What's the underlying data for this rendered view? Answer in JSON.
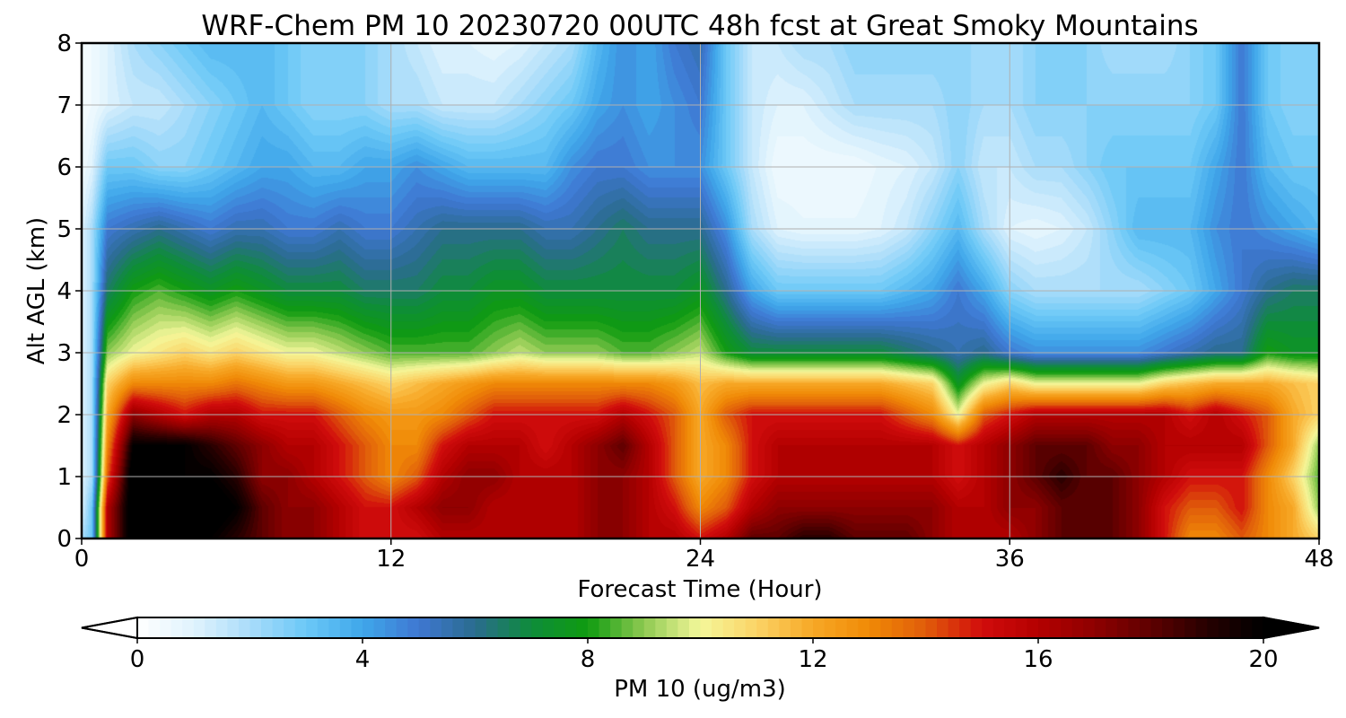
{
  "chart_data": {
    "type": "heatmap",
    "title": "WRF-Chem PM 10  20230720 00UTC 48h fcst at Great Smoky Mountains",
    "xlabel": "Forecast Time (Hour)",
    "ylabel": "Alt AGL (km)",
    "xlim": [
      0,
      48
    ],
    "ylim": [
      0,
      8
    ],
    "x_ticks": [
      "0",
      "12",
      "24",
      "36",
      "48"
    ],
    "y_ticks": [
      "0",
      "1",
      "2",
      "3",
      "4",
      "5",
      "6",
      "7",
      "8"
    ],
    "grid": true,
    "colorbar": {
      "label": "PM 10  (ug/m3)",
      "range": [
        0,
        20
      ],
      "ticks": [
        "0",
        "4",
        "8",
        "12",
        "16",
        "20"
      ],
      "extend": "both",
      "orientation": "horizontal"
    },
    "x_hours": [
      0,
      0.4,
      1,
      2,
      3,
      4,
      5,
      6,
      7,
      8,
      9,
      10,
      11,
      12,
      13,
      14,
      15,
      16,
      17,
      18,
      19,
      20,
      21,
      22,
      23,
      24,
      25,
      26,
      27,
      28,
      29,
      30,
      31,
      32,
      33,
      34,
      35,
      36,
      37,
      38,
      39,
      40,
      41,
      42,
      43,
      44,
      45,
      46,
      47,
      48
    ],
    "layers": {
      "altitude_km": [
        0,
        0.5,
        1,
        1.5,
        2,
        2.5,
        3,
        4,
        5,
        6,
        7,
        8
      ],
      "pm10": [
        [
          2,
          3,
          16,
          21,
          21,
          21,
          20,
          19,
          18,
          17,
          17,
          16,
          15,
          15,
          15,
          16,
          16,
          16,
          16,
          16,
          16,
          17,
          17,
          16,
          16,
          15,
          16,
          18,
          18,
          19,
          19,
          18,
          18,
          18,
          17,
          16,
          16,
          16,
          17,
          18,
          18,
          18,
          17,
          15,
          13,
          13,
          14,
          13,
          12,
          11
        ],
        [
          1,
          3,
          16,
          21,
          21,
          21,
          21,
          20,
          18,
          17,
          17,
          16,
          15,
          15,
          16,
          17,
          17,
          16,
          16,
          16,
          16,
          17,
          17,
          16,
          15,
          13,
          14,
          16,
          17,
          17,
          17,
          17,
          17,
          17,
          17,
          16,
          16,
          17,
          17,
          18,
          18,
          18,
          17,
          15,
          14,
          14,
          15,
          13,
          12,
          9
        ],
        [
          1,
          2,
          14,
          21,
          21,
          20,
          20,
          19,
          17,
          17,
          16,
          15,
          14,
          13,
          14,
          16,
          17,
          17,
          16,
          16,
          16,
          17,
          17,
          16,
          14,
          12,
          13,
          15,
          16,
          16,
          16,
          16,
          16,
          16,
          16,
          15,
          16,
          17,
          18,
          19,
          18,
          18,
          17,
          16,
          15,
          15,
          15,
          13,
          11,
          8.5
        ],
        [
          1,
          2,
          13,
          20,
          20,
          20,
          19,
          18,
          17,
          16,
          16,
          15,
          14,
          13,
          13,
          15,
          16,
          16,
          16,
          15,
          16,
          17,
          18,
          16,
          14,
          12,
          13,
          15,
          16,
          16,
          16,
          16,
          16,
          16,
          16,
          15,
          16,
          17,
          18,
          18,
          18,
          17,
          17,
          16,
          16,
          16,
          16,
          14,
          12,
          9
        ],
        [
          1,
          2,
          12,
          17,
          16,
          15,
          16,
          16,
          15,
          15,
          15,
          14,
          13,
          12.5,
          12.5,
          13,
          14,
          15,
          15,
          15,
          15,
          15,
          16,
          15,
          14,
          12,
          14,
          15,
          15,
          15,
          15,
          15,
          15,
          14,
          13,
          10,
          14,
          15,
          16,
          16,
          16,
          16,
          16,
          16,
          15,
          16,
          15,
          14,
          12,
          11
        ],
        [
          1,
          2,
          11,
          13,
          13,
          13,
          13,
          13.5,
          13,
          12.5,
          12.5,
          12,
          11.5,
          11,
          11.5,
          12,
          12.5,
          13,
          13,
          13,
          13,
          13,
          13,
          13,
          12.5,
          11.5,
          12,
          12,
          12,
          12,
          12,
          12,
          12,
          11.5,
          11,
          7.5,
          10,
          11,
          10,
          10,
          10,
          10,
          10,
          11,
          11.5,
          12,
          12,
          12,
          11.5,
          11
        ],
        [
          1,
          2,
          9,
          10,
          10.5,
          11,
          10.5,
          11,
          10.5,
          10,
          10,
          9.5,
          9,
          8.5,
          8.5,
          8.5,
          8.5,
          9,
          9.5,
          9,
          9,
          9,
          8.5,
          8.5,
          9,
          9.5,
          8,
          7,
          7,
          7,
          7,
          7,
          7,
          6.5,
          6,
          5.5,
          6,
          5,
          4.5,
          4.5,
          4.5,
          4.5,
          4.5,
          5,
          5.5,
          6,
          6,
          8,
          7.5,
          7.5
        ],
        [
          1,
          2,
          6.5,
          8,
          8.5,
          8,
          7.5,
          8,
          7.5,
          7,
          7,
          7,
          6.5,
          6.5,
          6.5,
          7,
          7,
          7.5,
          7.5,
          7,
          7,
          7,
          7,
          7,
          7,
          7.5,
          6,
          4,
          3,
          3,
          3,
          3,
          3,
          3.5,
          4,
          5,
          4,
          2.5,
          2,
          2,
          2,
          2,
          2,
          2.5,
          3,
          4,
          5,
          6,
          6.5,
          6.5
        ],
        [
          1,
          2,
          5,
          5.5,
          6,
          5.5,
          5,
          5.5,
          5.5,
          5,
          5,
          5.5,
          5,
          5,
          5.5,
          6,
          6,
          6,
          6,
          5.5,
          5.5,
          6,
          6.5,
          6,
          6,
          6,
          4.5,
          2,
          1,
          0.8,
          0.8,
          0.8,
          1,
          1.5,
          2.5,
          3.5,
          2,
          1,
          0.8,
          1,
          1.5,
          2.5,
          3.5,
          3.5,
          3.5,
          4.5,
          5,
          4.5,
          4,
          3.5
        ],
        [
          0.5,
          1,
          3,
          3,
          2.5,
          2.5,
          3,
          3.5,
          4,
          4,
          3.5,
          3.5,
          4,
          4,
          4.5,
          4,
          3.5,
          3.5,
          3.5,
          3.5,
          4.5,
          5,
          5,
          4.5,
          4.5,
          4.5,
          3,
          1.5,
          0.5,
          0.5,
          0.5,
          0.5,
          0.8,
          1,
          1.5,
          2.5,
          1.5,
          1.5,
          2,
          2,
          2.5,
          3,
          3,
          3,
          3,
          4,
          5,
          3.5,
          3,
          3
        ],
        [
          0.3,
          0.5,
          1,
          1.5,
          1.5,
          2,
          2.5,
          3,
          3.5,
          3,
          2.5,
          2.5,
          2.5,
          2,
          2,
          1.5,
          1.5,
          1.5,
          2,
          2.5,
          3,
          4,
          4.5,
          4,
          4.5,
          5,
          3,
          1.5,
          1,
          1,
          1.5,
          2,
          2,
          2,
          2,
          2.5,
          2,
          2,
          2.5,
          2.5,
          2.5,
          2.5,
          2.5,
          2.5,
          2.5,
          3,
          5,
          3,
          2.5,
          2.5
        ],
        [
          0.3,
          0.5,
          1,
          2,
          2.5,
          3,
          3.5,
          3.5,
          3.5,
          3,
          2.5,
          2.5,
          2.5,
          2,
          1.5,
          1,
          1,
          0.8,
          1,
          1.5,
          2,
          3.5,
          4.5,
          4,
          5,
          5.5,
          3,
          1.5,
          1.5,
          2,
          2,
          2.5,
          2.5,
          2.5,
          2.5,
          2.5,
          2,
          2,
          2.5,
          2.5,
          2.5,
          2,
          2,
          2,
          2.5,
          3,
          5,
          3,
          2.5,
          2.5
        ]
      ]
    },
    "colormap": [
      [
        0,
        "#ffffff"
      ],
      [
        1,
        "#e0f3fd"
      ],
      [
        2,
        "#a9dcfa"
      ],
      [
        3,
        "#6bc8f7"
      ],
      [
        4,
        "#3fa7ea"
      ],
      [
        5,
        "#3f77d2"
      ],
      [
        6,
        "#2a6c8e"
      ],
      [
        7,
        "#0e8c3a"
      ],
      [
        8,
        "#0f9b10"
      ],
      [
        9,
        "#8fca52"
      ],
      [
        10,
        "#f4f79a"
      ],
      [
        11,
        "#fbd366"
      ],
      [
        12,
        "#f7a826"
      ],
      [
        13,
        "#f08a06"
      ],
      [
        14,
        "#e05c0a"
      ],
      [
        15,
        "#d10c0c"
      ],
      [
        16,
        "#b40000"
      ],
      [
        17,
        "#8e0000"
      ],
      [
        18,
        "#5e0000"
      ],
      [
        19,
        "#260000"
      ],
      [
        20,
        "#000000"
      ]
    ],
    "colors": {
      "under": "#ffffff",
      "over": "#000000",
      "grid": "#b0b0b0",
      "frame": "#000000"
    }
  }
}
